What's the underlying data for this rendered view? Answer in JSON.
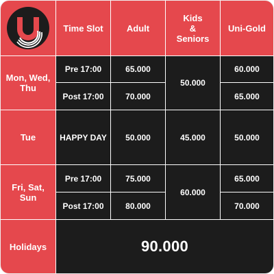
{
  "colors": {
    "accent": "#e5484d",
    "dark": "#1c1c1c",
    "white": "#ffffff"
  },
  "logo": {
    "icon": "cinema-logo-icon"
  },
  "header": {
    "time_slot": "Time Slot",
    "adult": "Adult",
    "kids_seniors": "Kids\n&\nSeniors",
    "uni_gold": "Uni-Gold"
  },
  "rows": {
    "mon_wed_thu": {
      "day": "Mon, Wed,\nThu",
      "pre_label": "Pre 17:00",
      "pre_adult": "65.000",
      "pre_uni": "60.000",
      "post_label": "Post 17:00",
      "post_adult": "70.000",
      "post_uni": "65.000",
      "kids": "50.000"
    },
    "tue": {
      "day": "Tue",
      "slot": "HAPPY DAY",
      "adult": "50.000",
      "kids": "45.000",
      "uni": "50.000"
    },
    "fri_sat_sun": {
      "day": "Fri, Sat,\nSun",
      "pre_label": "Pre 17:00",
      "pre_adult": "75.000",
      "pre_uni": "65.000",
      "post_label": "Post 17:00",
      "post_adult": "80.000",
      "post_uni": "70.000",
      "kids": "60.000"
    },
    "holidays": {
      "day": "Holidays",
      "price": "90.000"
    }
  }
}
